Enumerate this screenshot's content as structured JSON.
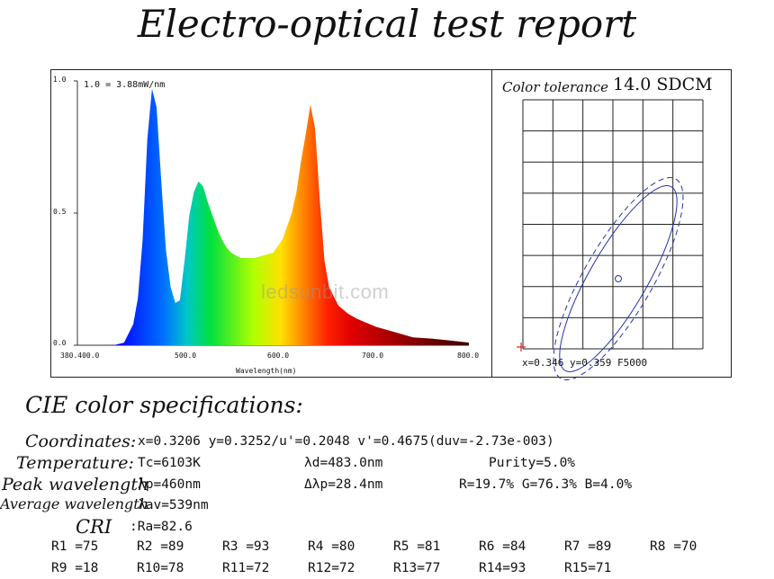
{
  "title": "Electro-optical test report",
  "watermark": "ledsunbit.com",
  "chart_data": [
    {
      "type": "area",
      "xlabel": "Wavelength(nm)",
      "scale_note": "1.0 = 3.88mW/nm",
      "xlim": [
        380,
        800
      ],
      "ylim": [
        0,
        1.0
      ],
      "x_ticks": [
        "380.400.0",
        "500.0",
        "600.0",
        "700.0",
        "800.0"
      ],
      "y_ticks": [
        "0.0",
        "0.5",
        "1.0"
      ],
      "x": [
        380,
        410,
        420,
        430,
        440,
        445,
        450,
        455,
        460,
        465,
        470,
        475,
        480,
        485,
        490,
        495,
        500,
        505,
        510,
        515,
        520,
        525,
        530,
        535,
        540,
        545,
        550,
        555,
        560,
        570,
        580,
        590,
        600,
        605,
        610,
        615,
        620,
        625,
        630,
        635,
        640,
        645,
        650,
        660,
        670,
        680,
        700,
        720,
        740,
        760,
        780,
        800
      ],
      "y": [
        0,
        0,
        0.001,
        0.01,
        0.08,
        0.18,
        0.4,
        0.78,
        0.97,
        0.9,
        0.62,
        0.36,
        0.22,
        0.16,
        0.17,
        0.32,
        0.49,
        0.58,
        0.62,
        0.6,
        0.54,
        0.49,
        0.44,
        0.4,
        0.37,
        0.35,
        0.34,
        0.33,
        0.33,
        0.33,
        0.34,
        0.35,
        0.4,
        0.45,
        0.5,
        0.58,
        0.7,
        0.8,
        0.91,
        0.82,
        0.55,
        0.32,
        0.22,
        0.15,
        0.12,
        0.1,
        0.07,
        0.05,
        0.03,
        0.025,
        0.018,
        0.01
      ]
    },
    {
      "type": "scatter",
      "title": "Color tolerance",
      "sdcm": "14.0 SDCM",
      "readout": "x=0.346 y=0.359 F5000",
      "point": {
        "x": 0.346,
        "y": 0.359
      }
    }
  ],
  "specs": {
    "heading": "CIE color specifications:",
    "coordinates_label": "Coordinates:",
    "coordinates_value": "x=0.3206 y=0.3252/u'=0.2048 v'=0.4675(duv=-2.73e-003)",
    "temperature_label": "Temperature:",
    "temperature_value": "Tc=6103K",
    "dominant": "λd=483.0nm",
    "purity": "Purity=5.0%",
    "peak_label": "Peak wavelength",
    "peak_value": "λp=460nm",
    "halfwidth": "Δλp=28.4nm",
    "rgb_ratio": "R=19.7% G=76.3% B=4.0%",
    "avg_label": "Average wavelength",
    "avg_value": "λav=539nm",
    "cri_label": "CRI",
    "cri_value": ":Ra=82.6"
  },
  "cri_values": [
    "R1 =75",
    "R2 =89",
    "R3 =93",
    "R4 =80",
    "R5 =81",
    "R6 =84",
    "R7 =89",
    "R8 =70",
    "R9 =18",
    "R10=78",
    "R11=72",
    "R12=72",
    "R13=77",
    "R14=93",
    "R15=71"
  ]
}
